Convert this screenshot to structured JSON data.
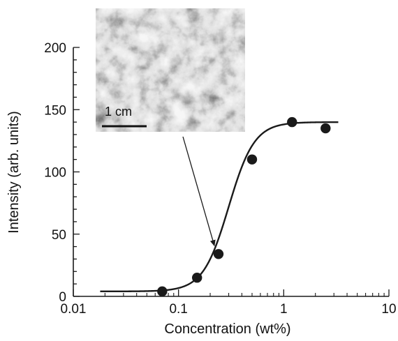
{
  "chart_data": {
    "type": "scatter",
    "xlabel": "Concentration (wt%)",
    "ylabel": "Intensity (arb. units)",
    "x_scale": "log",
    "xlim": [
      0.01,
      10
    ],
    "ylim": [
      0,
      200
    ],
    "x_ticks": [
      "0.01",
      "0.1",
      "1",
      "10"
    ],
    "y_ticks": [
      "0",
      "50",
      "100",
      "150",
      "200"
    ],
    "points": [
      {
        "x": 0.07,
        "y": 4
      },
      {
        "x": 0.15,
        "y": 15
      },
      {
        "x": 0.24,
        "y": 34
      },
      {
        "x": 0.5,
        "y": 110
      },
      {
        "x": 1.2,
        "y": 140
      },
      {
        "x": 2.5,
        "y": 135
      }
    ],
    "fit_curve": {
      "type": "sigmoid",
      "x_range": [
        0.018,
        3.3
      ],
      "bottom": 4,
      "top": 140,
      "x_mid": 0.3,
      "slope_per_decade": 8.2
    },
    "annotation": {
      "arrow_target_x": 0.24,
      "arrow_target_y": 34
    },
    "inset": {
      "scale_bar_label": "1 cm"
    },
    "colors": {
      "points": "#1a1a1a",
      "curve": "#1a1a1a",
      "axes": "#1a1a1a"
    }
  }
}
